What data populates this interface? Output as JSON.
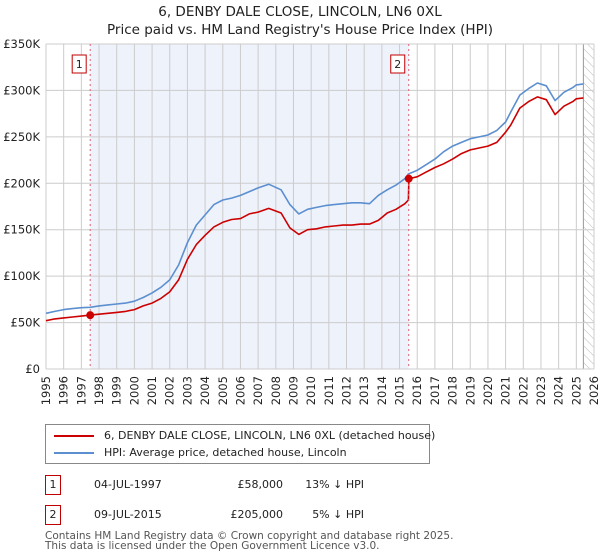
{
  "title_line1": "6, DENBY DALE CLOSE, LINCOLN, LN6 0XL",
  "title_line2": "Price paid vs. HM Land Registry's House Price Index (HPI)",
  "colors": {
    "property": "#cc0000",
    "hpi": "#5b8fd0",
    "marker_border": "#c00000",
    "shade": "#eef2fb",
    "grid": "#cccccc"
  },
  "chart_data": {
    "type": "line",
    "title": "6, DENBY DALE CLOSE, LINCOLN, LN6 0XL — Price paid vs. HM Land Registry's House Price Index (HPI)",
    "xlabel": "",
    "ylabel": "",
    "xlim": [
      1995,
      2026
    ],
    "ylim": [
      0,
      350000
    ],
    "grid": true,
    "y_ticks": [
      0,
      50000,
      100000,
      150000,
      200000,
      250000,
      300000,
      350000
    ],
    "y_tick_labels": [
      "£0",
      "£50K",
      "£100K",
      "£150K",
      "£200K",
      "£250K",
      "£300K",
      "£350K"
    ],
    "x_ticks": [
      1995,
      1996,
      1997,
      1998,
      1999,
      2000,
      2001,
      2002,
      2003,
      2004,
      2005,
      2006,
      2007,
      2008,
      2009,
      2010,
      2011,
      2012,
      2013,
      2014,
      2015,
      2016,
      2017,
      2018,
      2019,
      2020,
      2021,
      2022,
      2023,
      2024,
      2025,
      2026
    ],
    "x_tick_labels": [
      "1995",
      "1996",
      "1997",
      "1998",
      "1999",
      "2000",
      "2001",
      "2002",
      "2003",
      "2004",
      "2005",
      "2006",
      "2007",
      "2008",
      "2009",
      "2010",
      "2011",
      "2012",
      "2013",
      "2014",
      "2015",
      "2016",
      "2017",
      "2018",
      "2019",
      "2020",
      "2021",
      "2022",
      "2023",
      "2024",
      "2025",
      "2026"
    ],
    "shaded_region": [
      1997.5,
      2015.52
    ],
    "hatched_from": 2025.4,
    "series": [
      {
        "name": "6, DENBY DALE CLOSE, LINCOLN, LN6 0XL (detached house)",
        "color": "#cc0000",
        "x": [
          1995.0,
          1995.5,
          1996.0,
          1996.5,
          1997.0,
          1997.5,
          1998.0,
          1998.5,
          1999.0,
          1999.5,
          2000.0,
          2000.5,
          2001.0,
          2001.5,
          2002.0,
          2002.5,
          2003.0,
          2003.5,
          2004.0,
          2004.5,
          2005.0,
          2005.5,
          2006.0,
          2006.5,
          2007.0,
          2007.6,
          2008.3,
          2008.8,
          2009.3,
          2009.8,
          2010.3,
          2010.8,
          2011.3,
          2011.8,
          2012.3,
          2012.8,
          2013.3,
          2013.8,
          2014.3,
          2014.8,
          2015.3,
          2015.5,
          2015.53,
          2016.0,
          2016.5,
          2017.0,
          2017.5,
          2018.0,
          2018.5,
          2019.0,
          2019.5,
          2020.0,
          2020.5,
          2021.0,
          2021.3,
          2021.8,
          2022.3,
          2022.8,
          2023.3,
          2023.8,
          2024.3,
          2024.8,
          2025.0,
          2025.4
        ],
        "values": [
          52000,
          54000,
          55000,
          56000,
          57000,
          58000,
          59000,
          60000,
          61000,
          62000,
          64000,
          68000,
          71000,
          76000,
          83000,
          96000,
          118000,
          134000,
          144000,
          153000,
          158000,
          161000,
          162000,
          167000,
          169000,
          173000,
          168000,
          152000,
          145000,
          150000,
          151000,
          153000,
          154000,
          155000,
          155000,
          156000,
          156000,
          160000,
          168000,
          172000,
          178000,
          182000,
          205000,
          207000,
          212000,
          217000,
          221000,
          226000,
          232000,
          236000,
          238000,
          240000,
          244000,
          255000,
          263000,
          281000,
          288000,
          293000,
          290000,
          274000,
          283000,
          288000,
          291000,
          292000
        ]
      },
      {
        "name": "HPI: Average price, detached house, Lincoln",
        "color": "#5b8fd0",
        "x": [
          1995.0,
          1995.5,
          1996.0,
          1996.5,
          1997.0,
          1997.5,
          1998.0,
          1998.5,
          1999.0,
          1999.5,
          2000.0,
          2000.5,
          2001.0,
          2001.5,
          2002.0,
          2002.5,
          2003.0,
          2003.5,
          2004.0,
          2004.5,
          2005.0,
          2005.5,
          2006.0,
          2006.5,
          2007.0,
          2007.6,
          2008.3,
          2008.8,
          2009.3,
          2009.8,
          2010.3,
          2010.8,
          2011.3,
          2011.8,
          2012.3,
          2012.8,
          2013.3,
          2013.8,
          2014.3,
          2014.8,
          2015.3,
          2015.5,
          2016.0,
          2016.5,
          2017.0,
          2017.5,
          2018.0,
          2018.5,
          2019.0,
          2019.5,
          2020.0,
          2020.5,
          2021.0,
          2021.3,
          2021.8,
          2022.3,
          2022.8,
          2023.3,
          2023.8,
          2024.3,
          2024.8,
          2025.0,
          2025.4
        ],
        "values": [
          60000,
          62000,
          64000,
          65000,
          66000,
          66500,
          68000,
          69000,
          70000,
          71000,
          73000,
          77000,
          82000,
          88000,
          96000,
          112000,
          136000,
          155000,
          166000,
          177000,
          182000,
          184000,
          187000,
          191000,
          195000,
          199000,
          193000,
          177000,
          167000,
          172000,
          174000,
          176000,
          177000,
          178000,
          179000,
          179000,
          178000,
          187000,
          193000,
          198000,
          205000,
          210000,
          214000,
          220000,
          226000,
          234000,
          240000,
          244000,
          248000,
          250000,
          252000,
          257000,
          266000,
          277000,
          295000,
          302000,
          308000,
          305000,
          289000,
          298000,
          303000,
          306000,
          307000
        ]
      }
    ],
    "sale_markers": [
      {
        "label": "1",
        "x": 1997.5,
        "value": 58000
      },
      {
        "label": "2",
        "x": 2015.52,
        "value": 205000
      }
    ]
  },
  "legend": {
    "property_label": "6, DENBY DALE CLOSE, LINCOLN, LN6 0XL (detached house)",
    "hpi_label": "HPI: Average price, detached house, Lincoln"
  },
  "sales": [
    {
      "num": "1",
      "date": "04-JUL-1997",
      "price": "£58,000",
      "hpi": "13% ↓ HPI"
    },
    {
      "num": "2",
      "date": "09-JUL-2015",
      "price": "£205,000",
      "hpi": "5% ↓ HPI"
    }
  ],
  "footer": {
    "line1": "Contains HM Land Registry data © Crown copyright and database right 2025.",
    "line2": "This data is licensed under the Open Government Licence v3.0."
  }
}
